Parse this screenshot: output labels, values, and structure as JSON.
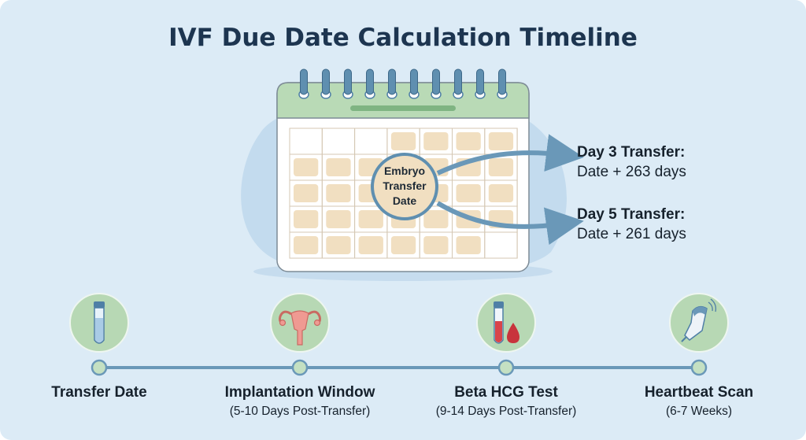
{
  "title": "IVF Due Date Calculation Timeline",
  "calendar": {
    "highlight_label": [
      "Embryo",
      "Transfer",
      "Date"
    ]
  },
  "transfers": [
    {
      "heading": "Day 3 Transfer:",
      "formula": "Date + 263 days"
    },
    {
      "heading": "Day 5 Transfer:",
      "formula": "Date + 261 days"
    }
  ],
  "timeline": [
    {
      "label": "Transfer Date",
      "sub": "",
      "icon": "test-tube-icon"
    },
    {
      "label": "Implantation Window",
      "sub": "(5-10 Days Post-Transfer)",
      "icon": "uterus-icon"
    },
    {
      "label": "Beta HCG Test",
      "sub": "(9-14 Days Post-Transfer)",
      "icon": "blood-test-icon"
    },
    {
      "label": "Heartbeat Scan",
      "sub": "(6-7 Weeks)",
      "icon": "ultrasound-probe-icon"
    }
  ],
  "colors": {
    "background": "#dcebf6",
    "title": "#1d3550",
    "calendar_header": "#b9dab6",
    "day_cell": "#f1dfc1",
    "accent_blue": "#5f8fb0",
    "icon_circle": "#b7d8b4"
  }
}
